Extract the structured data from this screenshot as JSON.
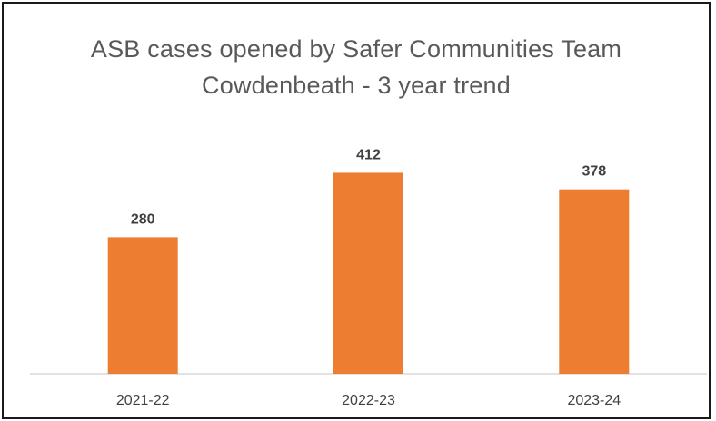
{
  "chart_data": {
    "type": "bar",
    "title": "ASB cases opened by Safer Communities Team",
    "subtitle": "Cowdenbeath - 3 year trend",
    "categories": [
      "2021-22",
      "2022-23",
      "2023-24"
    ],
    "values": [
      280,
      412,
      378
    ],
    "data_labels": [
      "280",
      "412",
      "378"
    ],
    "xlabel": "",
    "ylabel": "",
    "ylim": [
      0,
      450
    ],
    "grid": false,
    "legend": "none",
    "colors": {
      "bar": "#ED7D31",
      "axis": "#D9D9D9",
      "text": "#404040",
      "title": "#595959"
    }
  }
}
